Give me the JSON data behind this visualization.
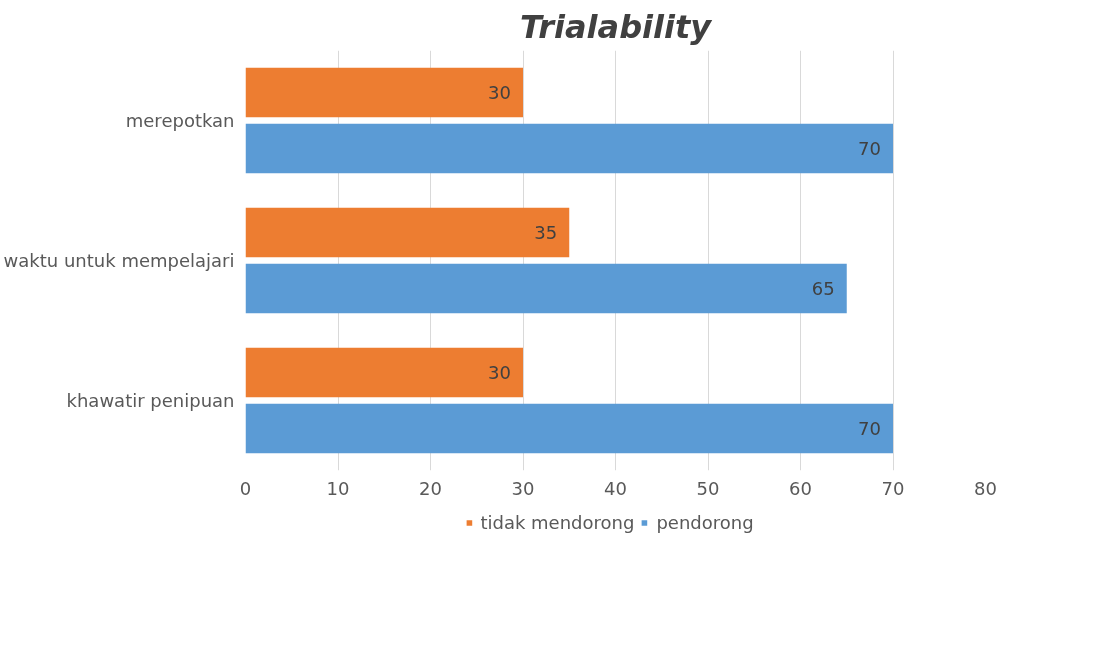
{
  "chart_data": {
    "type": "bar",
    "orientation": "horizontal",
    "title": "Trialability",
    "categories": [
      "merepotkan",
      "waktu untuk mempelajari",
      "khawatir penipuan"
    ],
    "series": [
      {
        "name": "tidak mendorong",
        "color": "#ed7d31",
        "values": [
          30,
          35,
          30
        ]
      },
      {
        "name": "pendorong",
        "color": "#5b9bd5",
        "values": [
          70,
          65,
          70
        ]
      }
    ],
    "xlim": [
      0,
      80
    ],
    "xticks": [
      0,
      10,
      20,
      30,
      40,
      50,
      60,
      70,
      80
    ],
    "grid": "x",
    "legend": "bottom",
    "data_labels": true
  }
}
